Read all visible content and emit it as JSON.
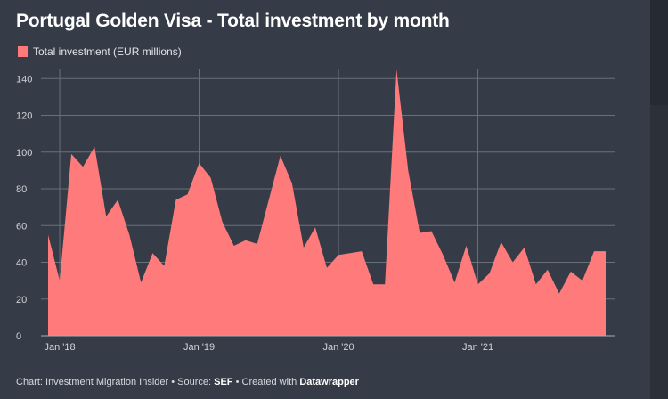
{
  "title": "Portugal Golden Visa - Total investment by month",
  "legend": {
    "label": "Total investment (EUR millions)"
  },
  "colors": {
    "area": "#ff7b7b",
    "grid": "#6a707a",
    "axis_text": "#cfd3d9",
    "background": "#363c47"
  },
  "footer": {
    "prefix": "Chart: Investment Migration Insider • Source: ",
    "source": "SEF",
    "middle": " • Created with ",
    "tool": "Datawrapper"
  },
  "chart_data": {
    "type": "area",
    "x": [
      "2017-12",
      "2018-01",
      "2018-02",
      "2018-03",
      "2018-04",
      "2018-05",
      "2018-06",
      "2018-07",
      "2018-08",
      "2018-09",
      "2018-10",
      "2018-11",
      "2018-12",
      "2019-01",
      "2019-02",
      "2019-03",
      "2019-04",
      "2019-05",
      "2019-06",
      "2019-07",
      "2019-08",
      "2019-09",
      "2019-10",
      "2019-11",
      "2019-12",
      "2020-01",
      "2020-02",
      "2020-03",
      "2020-04",
      "2020-05",
      "2020-06",
      "2020-07",
      "2020-08",
      "2020-09",
      "2020-10",
      "2020-11",
      "2020-12",
      "2021-01",
      "2021-02",
      "2021-03",
      "2021-04",
      "2021-05",
      "2021-06",
      "2021-07",
      "2021-08",
      "2021-09",
      "2021-10",
      "2021-11",
      "2021-12"
    ],
    "series": [
      {
        "name": "Total investment (EUR millions)",
        "values": [
          55,
          30,
          99,
          92,
          103,
          65,
          74,
          55,
          29,
          45,
          38,
          74,
          77,
          94,
          86,
          62,
          49,
          52,
          50,
          74,
          98,
          83,
          48,
          59,
          37,
          44,
          45,
          46,
          28,
          28,
          145,
          90,
          56,
          57,
          44,
          29,
          49,
          28,
          34,
          51,
          40,
          48,
          28,
          36,
          23,
          35,
          30,
          46,
          46
        ]
      }
    ],
    "ylim": [
      0,
      145
    ],
    "yticks": [
      0,
      20,
      40,
      60,
      80,
      100,
      120,
      140
    ],
    "xticks": [
      {
        "x": "2018-01",
        "label": "Jan '18"
      },
      {
        "x": "2019-01",
        "label": "Jan '19"
      },
      {
        "x": "2020-01",
        "label": "Jan '20"
      },
      {
        "x": "2021-01",
        "label": "Jan '21"
      }
    ],
    "grid": true,
    "legend_position": "top-left"
  }
}
